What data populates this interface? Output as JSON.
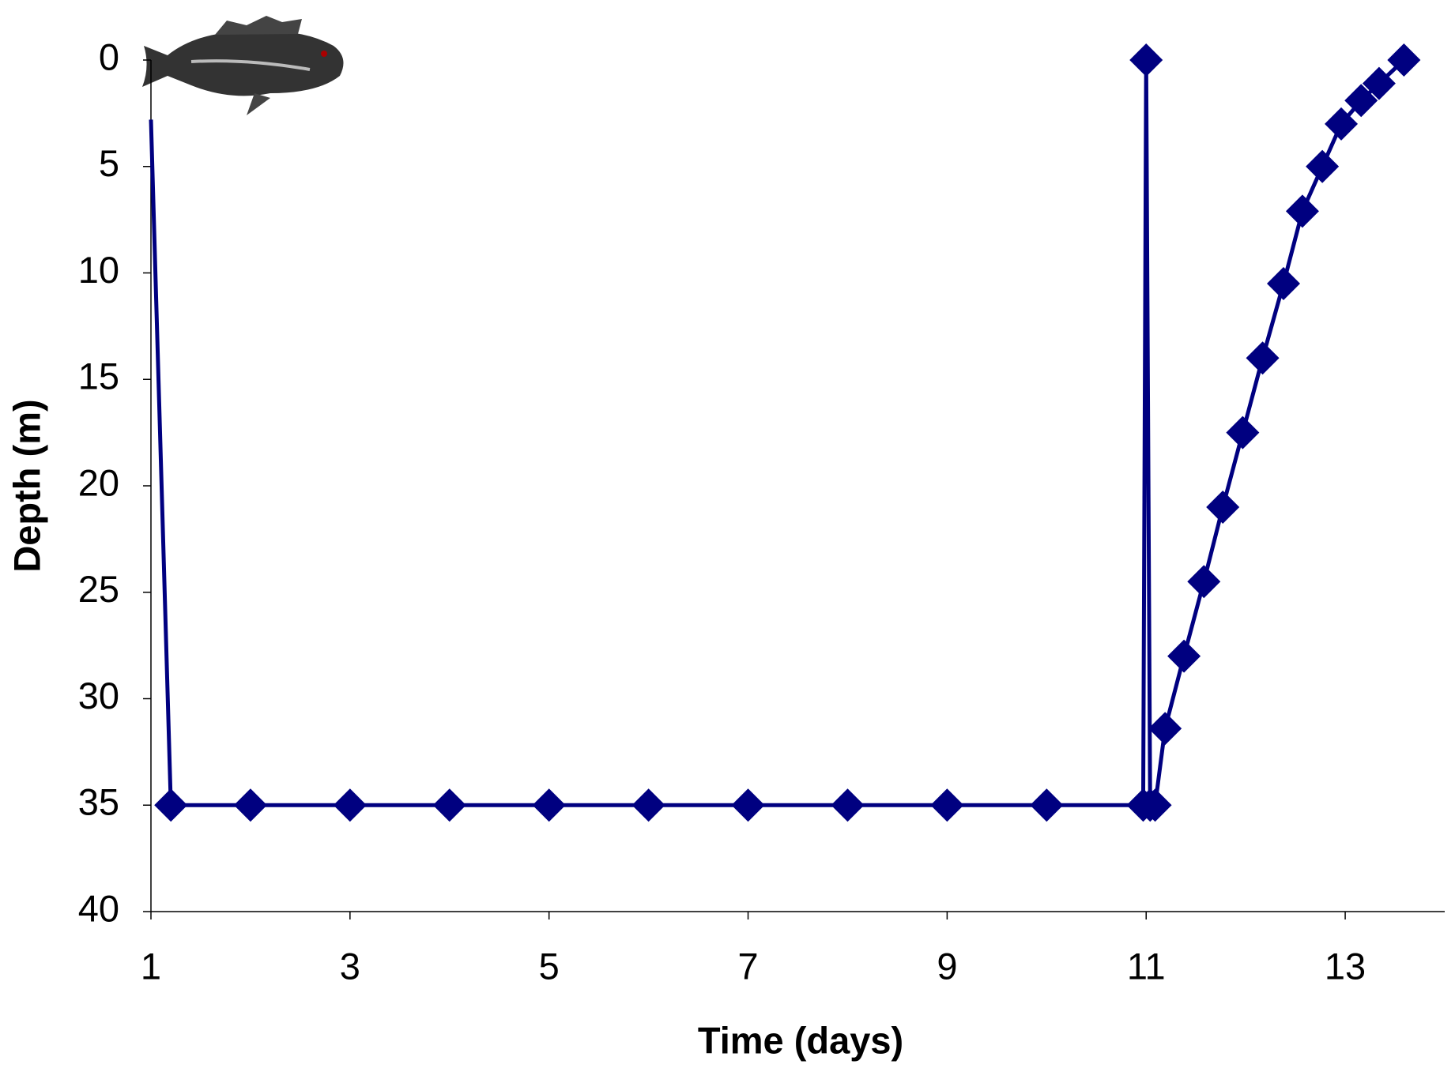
{
  "chart_data": {
    "type": "line",
    "x_label": "Time (days)",
    "y_label": "Depth (m)",
    "x": [
      1,
      1.2,
      2,
      3,
      4,
      5,
      6,
      7,
      8,
      9,
      10,
      10.97,
      11,
      11.04,
      11.09,
      11.19,
      11.38,
      11.58,
      11.77,
      11.97,
      12.17,
      12.38,
      12.57,
      12.77,
      12.96,
      13.16,
      13.34,
      13.59
    ],
    "series": [
      {
        "color": "#000080",
        "values": [
          2.8,
          35,
          35,
          35,
          35,
          35,
          35,
          35,
          35,
          35,
          35,
          35,
          0,
          35,
          35,
          31.4,
          28,
          24.5,
          21,
          17.5,
          14,
          10.5,
          7.1,
          5,
          3,
          1.9,
          1.1,
          0
        ]
      }
    ],
    "xlim": [
      1,
      14
    ],
    "xticks": [
      1,
      3,
      5,
      7,
      9,
      11,
      13
    ],
    "ylim": [
      0,
      40
    ],
    "yticks": [
      0,
      5,
      10,
      15,
      20,
      25,
      30,
      35,
      40
    ],
    "y_inverted": true
  }
}
